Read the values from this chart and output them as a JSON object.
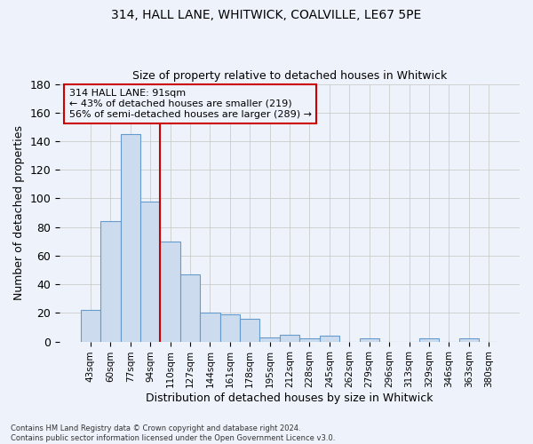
{
  "title_line1": "314, HALL LANE, WHITWICK, COALVILLE, LE67 5PE",
  "title_line2": "Size of property relative to detached houses in Whitwick",
  "xlabel": "Distribution of detached houses by size in Whitwick",
  "ylabel": "Number of detached properties",
  "bar_labels": [
    "43sqm",
    "60sqm",
    "77sqm",
    "94sqm",
    "110sqm",
    "127sqm",
    "144sqm",
    "161sqm",
    "178sqm",
    "195sqm",
    "212sqm",
    "228sqm",
    "245sqm",
    "262sqm",
    "279sqm",
    "296sqm",
    "313sqm",
    "329sqm",
    "346sqm",
    "363sqm",
    "380sqm"
  ],
  "bar_values": [
    22,
    84,
    145,
    98,
    70,
    47,
    20,
    19,
    16,
    3,
    5,
    2,
    4,
    0,
    2,
    0,
    0,
    2,
    0,
    2,
    0
  ],
  "bar_color": "#ccdcee",
  "bar_edge_color": "#6699cc",
  "vline_x_index": 3,
  "vline_color": "#cc0000",
  "annotation_text": "314 HALL LANE: 91sqm\n← 43% of detached houses are smaller (219)\n56% of semi-detached houses are larger (289) →",
  "ylim": [
    0,
    180
  ],
  "yticks": [
    0,
    20,
    40,
    60,
    80,
    100,
    120,
    140,
    160,
    180
  ],
  "grid_color": "#cccccc",
  "bg_color": "#eef3fb",
  "footnote": "Contains HM Land Registry data © Crown copyright and database right 2024.\nContains public sector information licensed under the Open Government Licence v3.0."
}
